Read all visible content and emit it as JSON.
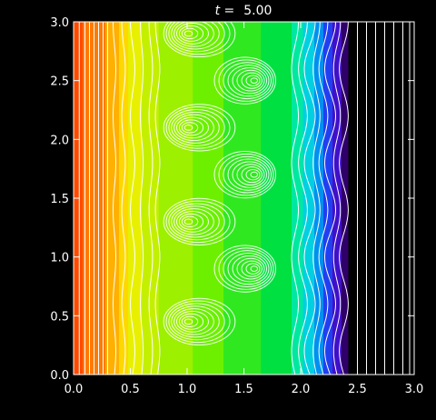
{
  "chart_data": {
    "type": "heatmap",
    "title": {
      "var": "t",
      "eq": " =",
      "value": "5.00"
    },
    "xlabel": "",
    "ylabel": "",
    "xlim": [
      0.0,
      3.0
    ],
    "ylim": [
      0.0,
      3.0
    ],
    "x_ticks": [
      "0.0",
      "0.5",
      "1.0",
      "1.5",
      "2.0",
      "2.5",
      "3.0"
    ],
    "y_ticks": [
      "0.0",
      "0.5",
      "1.0",
      "1.5",
      "2.0",
      "2.5",
      "3.0"
    ],
    "x_tick_values": [
      0.0,
      0.5,
      1.0,
      1.5,
      2.0,
      2.5,
      3.0
    ],
    "y_tick_values": [
      0.0,
      0.5,
      1.0,
      1.5,
      2.0,
      2.5,
      3.0
    ],
    "colormap": "rainbow (red at left, violet/black at right)",
    "band_colors": [
      "#ff4a00",
      "#ff7a00",
      "#ffb000",
      "#ffd800",
      "#e8f000",
      "#c4f000",
      "#9cf000",
      "#6cf000",
      "#30e820",
      "#00e040",
      "#00e8a0",
      "#00d0e0",
      "#0090f0",
      "#2040f0",
      "#4010c8",
      "#30006a",
      "#000000"
    ],
    "band_x_edges": [
      0.08,
      0.28,
      0.4,
      0.48,
      0.6,
      0.75,
      1.05,
      1.32,
      1.65,
      1.92,
      2.02,
      2.12,
      2.2,
      2.28,
      2.36,
      2.42,
      3.0
    ],
    "vortex_centers": [
      [
        1.0,
        0.45
      ],
      [
        1.6,
        0.9
      ],
      [
        1.0,
        1.3
      ],
      [
        1.6,
        1.7
      ],
      [
        1.0,
        2.1
      ],
      [
        1.6,
        2.5
      ],
      [
        1.0,
        2.9
      ]
    ],
    "grid": false,
    "contour_color": "#ffffff"
  }
}
